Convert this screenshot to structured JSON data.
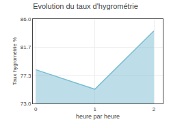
{
  "chart_data": {
    "type": "area",
    "title": "Evolution du taux d'hygrométrie",
    "x_label": "heure par heure",
    "y_label": "Taux hygrométrie %",
    "x": [
      0,
      1,
      2
    ],
    "values": [
      78.2,
      75.2,
      84.2
    ],
    "xlim": [
      -0.05,
      2.15
    ],
    "xticks": [
      0,
      1,
      2
    ],
    "ylim": [
      73.0,
      86.0
    ],
    "yticks": [
      {
        "value": 73.0,
        "label": "73.0"
      },
      77.3,
      81.7,
      {
        "value": 86.0,
        "label": "86.0"
      }
    ],
    "color": "#7bbdd4",
    "grid": true
  }
}
